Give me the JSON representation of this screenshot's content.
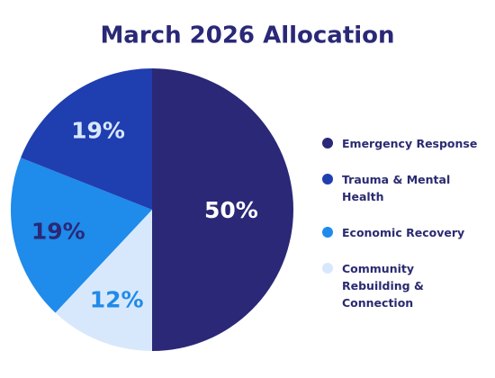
{
  "chart_data": {
    "type": "pie",
    "title": "March 2026 Allocation",
    "categories": [
      "Emergency Response",
      "Community Rebuilding & Connection",
      "Economic Recovery",
      "Trauma & Mental Health"
    ],
    "values": [
      50,
      12,
      19,
      19
    ],
    "value_labels": [
      "50%",
      "12%",
      "19%",
      "19%"
    ],
    "colors": [
      "#2a2877",
      "#d8e8fc",
      "#1f8bea",
      "#1f3eb0"
    ],
    "label_colors": [
      "#ffffff",
      "#1f8bea",
      "#2a2877",
      "#d8e8fc"
    ],
    "legend_order": [
      0,
      3,
      2,
      1
    ]
  }
}
